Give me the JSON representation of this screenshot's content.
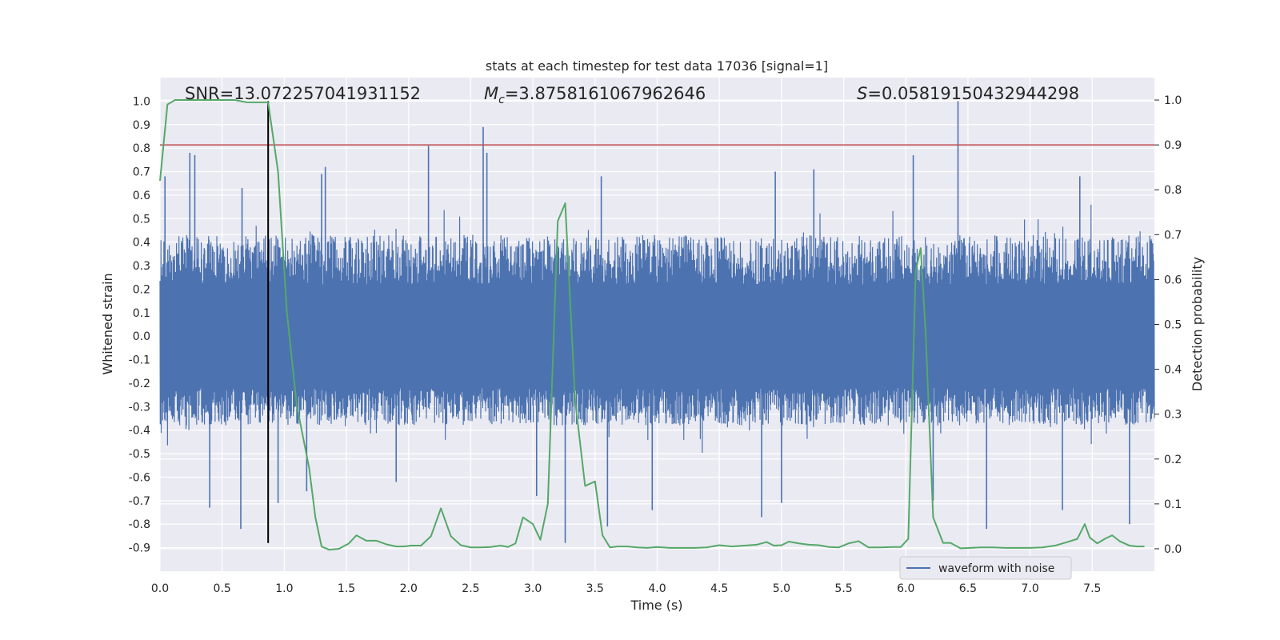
{
  "chart_data": {
    "type": "line",
    "title": "stats at each timestep for test data 17036 [signal=1]",
    "xlabel": "Time (s)",
    "ylabel_left": "Whitened strain",
    "ylabel_right": "Detection probability",
    "xlim": [
      0.0,
      8.0
    ],
    "ylim_left": [
      -1.0,
      1.1
    ],
    "ylim_right": [
      -0.05,
      1.05
    ],
    "x_ticks": [
      "0.0",
      "0.5",
      "1.0",
      "1.5",
      "2.0",
      "2.5",
      "3.0",
      "3.5",
      "4.0",
      "4.5",
      "5.0",
      "5.5",
      "6.0",
      "6.5",
      "7.0",
      "7.5"
    ],
    "y_ticks_left": [
      "1.0",
      "0.9",
      "0.8",
      "0.7",
      "0.6",
      "0.5",
      "0.4",
      "0.3",
      "0.2",
      "0.1",
      "0.0",
      "-0.1",
      "-0.2",
      "-0.3",
      "-0.4",
      "-0.5",
      "-0.6",
      "-0.7",
      "-0.8",
      "-0.9"
    ],
    "y_ticks_right": [
      "1.0",
      "0.9",
      "0.8",
      "0.7",
      "0.6",
      "0.5",
      "0.4",
      "0.3",
      "0.2",
      "0.1",
      "0.0"
    ],
    "annotations": {
      "snr": "SNR=13.072257041931152",
      "mc_symbol": "M",
      "mc_subscript": "c",
      "mc_value": "=3.8758161067962646",
      "s_symbol": "S",
      "s_value": "=0.05819150432944298"
    },
    "threshold_line": {
      "value": 0.9,
      "axis": "right",
      "color": "#c44e52"
    },
    "merger_marker": {
      "x": 0.87,
      "y_range": [
        -0.88,
        1.0
      ],
      "color": "#000000"
    },
    "legend": {
      "label": "waveform with noise",
      "placement": "lower-right"
    },
    "series": [
      {
        "name": "waveform with noise",
        "axis": "left",
        "color": "#4c72b0",
        "style": "dense noise band",
        "typical_range": [
          -0.32,
          0.43
        ],
        "spikes": [
          {
            "x": 0.04,
            "y": 0.68
          },
          {
            "x": 0.24,
            "y": 0.78
          },
          {
            "x": 0.28,
            "y": 0.77
          },
          {
            "x": 0.66,
            "y": 0.63
          },
          {
            "x": 1.3,
            "y": 0.69
          },
          {
            "x": 1.33,
            "y": 0.72
          },
          {
            "x": 2.16,
            "y": 0.81
          },
          {
            "x": 2.6,
            "y": 0.89
          },
          {
            "x": 2.63,
            "y": 0.78
          },
          {
            "x": 3.55,
            "y": 0.68
          },
          {
            "x": 4.95,
            "y": 0.7
          },
          {
            "x": 5.26,
            "y": 0.71
          },
          {
            "x": 6.06,
            "y": 0.77
          },
          {
            "x": 6.42,
            "y": 1.0
          },
          {
            "x": 7.4,
            "y": 0.68
          },
          {
            "x": 0.4,
            "y": -0.73
          },
          {
            "x": 0.65,
            "y": -0.82
          },
          {
            "x": 0.95,
            "y": -0.71
          },
          {
            "x": 1.18,
            "y": -0.66
          },
          {
            "x": 1.9,
            "y": -0.62
          },
          {
            "x": 3.03,
            "y": -0.68
          },
          {
            "x": 3.26,
            "y": -0.88
          },
          {
            "x": 3.6,
            "y": -0.81
          },
          {
            "x": 3.96,
            "y": -0.74
          },
          {
            "x": 4.84,
            "y": -0.77
          },
          {
            "x": 5.0,
            "y": -0.71
          },
          {
            "x": 6.22,
            "y": -0.7
          },
          {
            "x": 6.65,
            "y": -0.82
          },
          {
            "x": 7.26,
            "y": -0.74
          },
          {
            "x": 7.8,
            "y": -0.8
          }
        ]
      },
      {
        "name": "detection probability",
        "axis": "right",
        "color": "#55a868",
        "x": [
          0.0,
          0.06,
          0.12,
          0.2,
          0.3,
          0.4,
          0.5,
          0.6,
          0.7,
          0.8,
          0.87,
          0.95,
          1.02,
          1.1,
          1.2,
          1.25,
          1.3,
          1.36,
          1.44,
          1.52,
          1.58,
          1.66,
          1.74,
          1.82,
          1.9,
          1.96,
          2.02,
          2.1,
          2.18,
          2.26,
          2.34,
          2.42,
          2.5,
          2.58,
          2.66,
          2.74,
          2.8,
          2.86,
          2.92,
          3.0,
          3.06,
          3.12,
          3.2,
          3.26,
          3.34,
          3.42,
          3.5,
          3.56,
          3.62,
          3.68,
          3.76,
          3.84,
          3.92,
          4.0,
          4.1,
          4.2,
          4.3,
          4.4,
          4.5,
          4.6,
          4.7,
          4.8,
          4.88,
          4.94,
          5.0,
          5.06,
          5.14,
          5.22,
          5.3,
          5.38,
          5.46,
          5.54,
          5.62,
          5.7,
          5.8,
          5.9,
          5.96,
          6.02,
          6.08,
          6.12,
          6.16,
          6.22,
          6.3,
          6.36,
          6.44,
          6.52,
          6.6,
          6.7,
          6.8,
          6.9,
          7.0,
          7.1,
          7.2,
          7.3,
          7.38,
          7.44,
          7.48,
          7.54,
          7.6,
          7.66,
          7.72,
          7.8,
          7.86,
          7.92
        ],
        "y": [
          0.82,
          0.99,
          1.0,
          1.0,
          1.0,
          1.0,
          1.0,
          1.0,
          0.995,
          0.995,
          0.995,
          0.84,
          0.53,
          0.32,
          0.18,
          0.07,
          0.005,
          -0.002,
          0.0,
          0.012,
          0.03,
          0.018,
          0.018,
          0.01,
          0.005,
          0.005,
          0.007,
          0.007,
          0.028,
          0.09,
          0.028,
          0.008,
          0.003,
          0.003,
          0.004,
          0.007,
          0.004,
          0.012,
          0.07,
          0.055,
          0.02,
          0.1,
          0.73,
          0.77,
          0.33,
          0.14,
          0.15,
          0.03,
          0.003,
          0.005,
          0.005,
          0.003,
          0.002,
          0.004,
          0.002,
          0.002,
          0.002,
          0.003,
          0.008,
          0.005,
          0.007,
          0.009,
          0.015,
          0.007,
          0.008,
          0.016,
          0.012,
          0.009,
          0.008,
          0.004,
          0.003,
          0.012,
          0.017,
          0.003,
          0.003,
          0.004,
          0.004,
          0.022,
          0.62,
          0.67,
          0.48,
          0.07,
          0.013,
          0.013,
          0.001,
          0.002,
          0.003,
          0.003,
          0.002,
          0.002,
          0.002,
          0.003,
          0.007,
          0.015,
          0.022,
          0.055,
          0.025,
          0.012,
          0.022,
          0.03,
          0.017,
          0.007,
          0.005,
          0.005
        ]
      }
    ]
  }
}
